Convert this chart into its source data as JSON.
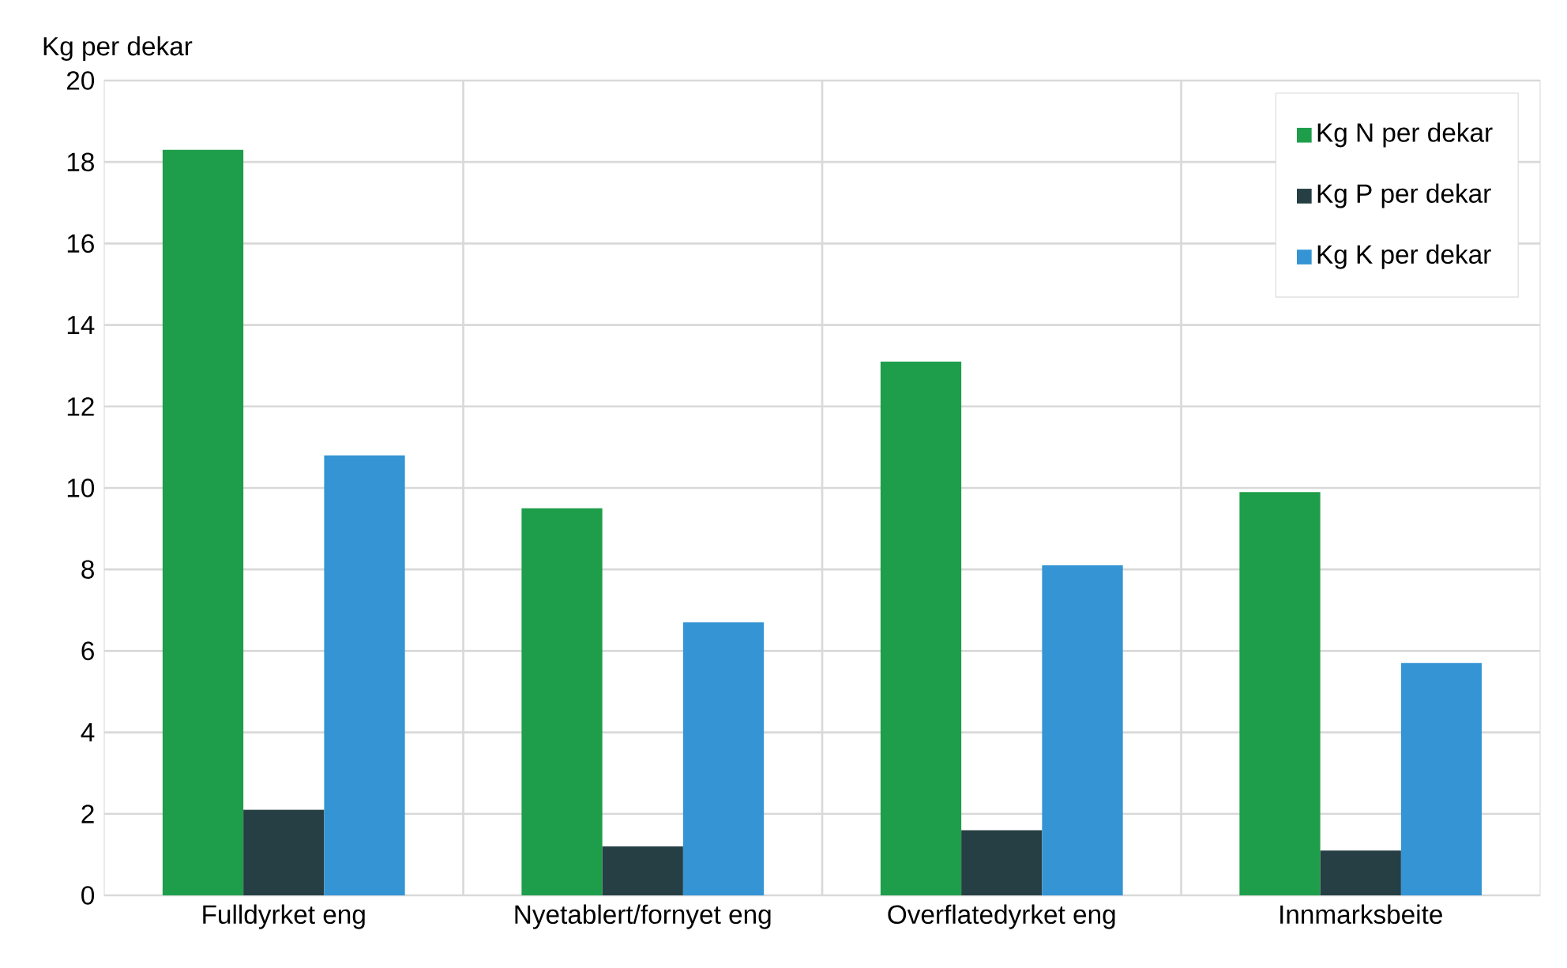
{
  "chart_data": {
    "type": "bar",
    "ylabel": "Kg per dekar",
    "categories": [
      "Fulldyrket eng",
      "Nyetablert/fornyet eng",
      "Overflatedyrket eng",
      "Innmarksbeite"
    ],
    "series": [
      {
        "name": "Kg N per dekar",
        "color": "#1e9e4a",
        "values": [
          18.3,
          9.5,
          13.1,
          9.9
        ]
      },
      {
        "name": "Kg P per dekar",
        "color": "#263f44",
        "values": [
          2.1,
          1.2,
          1.6,
          1.1
        ]
      },
      {
        "name": "Kg K per dekar",
        "color": "#3494d4",
        "values": [
          10.8,
          6.7,
          8.1,
          5.7
        ]
      }
    ],
    "ylim": [
      0,
      20
    ],
    "yticks": [
      0,
      2,
      4,
      6,
      8,
      10,
      12,
      14,
      16,
      18,
      20
    ],
    "grid": true,
    "legend": "top right"
  }
}
